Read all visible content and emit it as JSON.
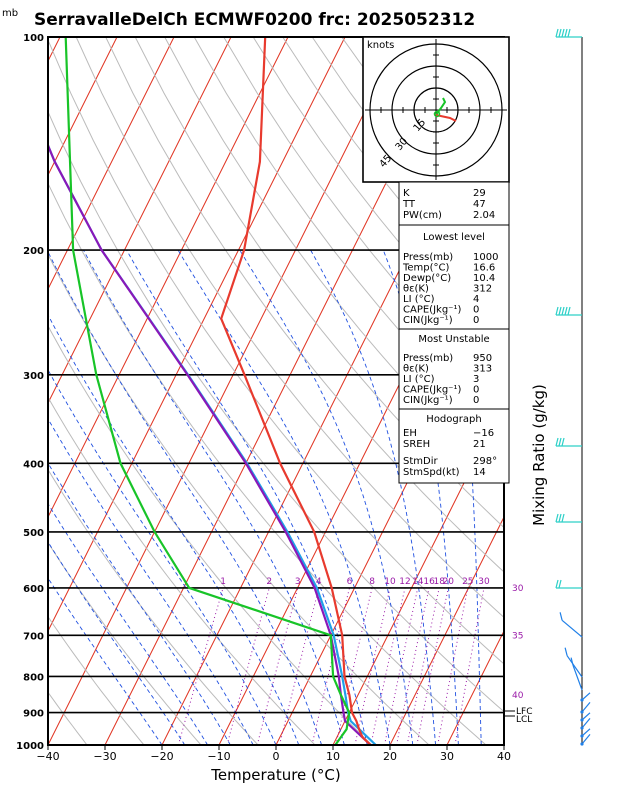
{
  "chart_data": {
    "type": "skew-t",
    "title": "SerravalleDelCh ECMWF0200  frc: 2025052312",
    "pressure_unit": "mb",
    "xlabel": "Temperature  (°C)",
    "right_label": "Mixing Ratio  (g/kg)",
    "xlim": [
      -40,
      40
    ],
    "plim": [
      1000,
      100
    ],
    "x_ticks": [
      "−40",
      "−30",
      "−20",
      "−10",
      "0",
      "10",
      "20",
      "30",
      "40"
    ],
    "p_ticks": [
      "100",
      "200",
      "300",
      "400",
      "500",
      "600",
      "700",
      "800",
      "900",
      "1000"
    ],
    "mixing_ratio_labels": [
      "1",
      "2",
      "3",
      "4",
      "6",
      "8",
      "10",
      "12",
      "14",
      "16",
      "18",
      "20",
      "25",
      "30"
    ],
    "theta_labels": [
      "30",
      "35",
      "40"
    ],
    "lcl_label": "LCL",
    "lfc_label": "LFC",
    "temperature": [
      {
        "p": 1000,
        "t": 16.6
      },
      {
        "p": 975,
        "t": 14.5
      },
      {
        "p": 950,
        "t": 13.2
      },
      {
        "p": 925,
        "t": 12.0
      },
      {
        "p": 900,
        "t": 10.5
      },
      {
        "p": 850,
        "t": 8.5
      },
      {
        "p": 800,
        "t": 6.0
      },
      {
        "p": 700,
        "t": 2.0
      },
      {
        "p": 600,
        "t": -4.0
      },
      {
        "p": 500,
        "t": -12.0
      },
      {
        "p": 400,
        "t": -24.0
      },
      {
        "p": 300,
        "t": -38.0
      },
      {
        "p": 250,
        "t": -47.0
      },
      {
        "p": 200,
        "t": -49.0
      },
      {
        "p": 150,
        "t": -54.0
      },
      {
        "p": 100,
        "t": -64.0
      }
    ],
    "dewpoint": [
      {
        "p": 1000,
        "t": 10.4
      },
      {
        "p": 950,
        "t": 11.0
      },
      {
        "p": 900,
        "t": 10.0
      },
      {
        "p": 850,
        "t": 7.0
      },
      {
        "p": 800,
        "t": 4.0
      },
      {
        "p": 700,
        "t": 0.0
      },
      {
        "p": 600,
        "t": -29.0
      },
      {
        "p": 500,
        "t": -40.0
      },
      {
        "p": 400,
        "t": -52.0
      },
      {
        "p": 300,
        "t": -64.0
      },
      {
        "p": 200,
        "t": -79.0
      },
      {
        "p": 100,
        "t": -99.0
      }
    ],
    "parcel": [
      {
        "p": 1000,
        "t": 16.6
      },
      {
        "p": 925,
        "t": 10.0
      },
      {
        "p": 900,
        "t": 9.0
      },
      {
        "p": 850,
        "t": 7.0
      },
      {
        "p": 800,
        "t": 5.0
      },
      {
        "p": 700,
        "t": 0.0
      },
      {
        "p": 600,
        "t": -7.0
      },
      {
        "p": 500,
        "t": -17.0
      },
      {
        "p": 400,
        "t": -30.0
      },
      {
        "p": 300,
        "t": -48.0
      },
      {
        "p": 200,
        "t": -74.0
      },
      {
        "p": 150,
        "t": -90.0
      },
      {
        "p": 100,
        "t": -110.0
      }
    ],
    "virtual_parcel": [
      {
        "p": 1000,
        "t": 17.5
      },
      {
        "p": 925,
        "t": 11.0
      },
      {
        "p": 900,
        "t": 9.8
      },
      {
        "p": 850,
        "t": 7.8
      },
      {
        "p": 800,
        "t": 5.6
      },
      {
        "p": 700,
        "t": 0.5
      },
      {
        "p": 600,
        "t": -6.6
      },
      {
        "p": 500,
        "t": -16.7
      },
      {
        "p": 400,
        "t": -29.8
      },
      {
        "p": 300,
        "t": -47.9
      },
      {
        "p": 200,
        "t": -74.0
      },
      {
        "p": 150,
        "t": -90.0
      },
      {
        "p": 100,
        "t": -110.0
      }
    ],
    "hodograph": {
      "units_label": "knots",
      "ring_labels": [
        "15",
        "30",
        "45"
      ]
    }
  },
  "indices": {
    "top": [
      {
        "label": "K",
        "value": "29"
      },
      {
        "label": "TT",
        "value": "47"
      },
      {
        "label": "PW(cm)",
        "value": "2.04"
      }
    ],
    "lowest": {
      "heading": "Lowest level",
      "rows": [
        {
          "label": "Press(mb)",
          "value": "1000"
        },
        {
          "label": "Temp(°C)",
          "value": "16.6"
        },
        {
          "label": "Dewp(°C)",
          "value": "10.4"
        },
        {
          "label": "θε(K)",
          "value": "312"
        },
        {
          "label": "LI  (°C)",
          "value": "4"
        },
        {
          "label": "CAPE(Jkg⁻¹)",
          "value": "0"
        },
        {
          "label": "CIN(Jkg⁻¹)",
          "value": "0"
        }
      ]
    },
    "unstable": {
      "heading": "Most Unstable",
      "rows": [
        {
          "label": "Press(mb)",
          "value": "950"
        },
        {
          "label": "θε(K)",
          "value": "313"
        },
        {
          "label": "LI  (°C)",
          "value": "3"
        },
        {
          "label": "CAPE(Jkg⁻¹)",
          "value": "0"
        },
        {
          "label": "CIN(Jkg⁻¹)",
          "value": "0"
        }
      ]
    },
    "hodo": {
      "heading": "Hodograph",
      "rows": [
        {
          "label": "EH",
          "value": "−16"
        },
        {
          "label": "SREH",
          "value": "21"
        },
        {
          "label": "StmDir",
          "value": "298°"
        },
        {
          "label": "StmSpd(kt)",
          "value": "14"
        }
      ]
    }
  },
  "colors": {
    "isotherm": "#e0301e",
    "dry_adiabat": "#bbbbbb",
    "moist_adiabat": "#2050e0",
    "mixing_ratio": "#9a1aa8",
    "temperature": "#e83a2e",
    "dewpoint": "#18c428",
    "parcel": "#8a18b8",
    "virtual_parcel": "#20a0e8",
    "barb": "#2ed0c8",
    "barb_low": "#2080e8"
  }
}
